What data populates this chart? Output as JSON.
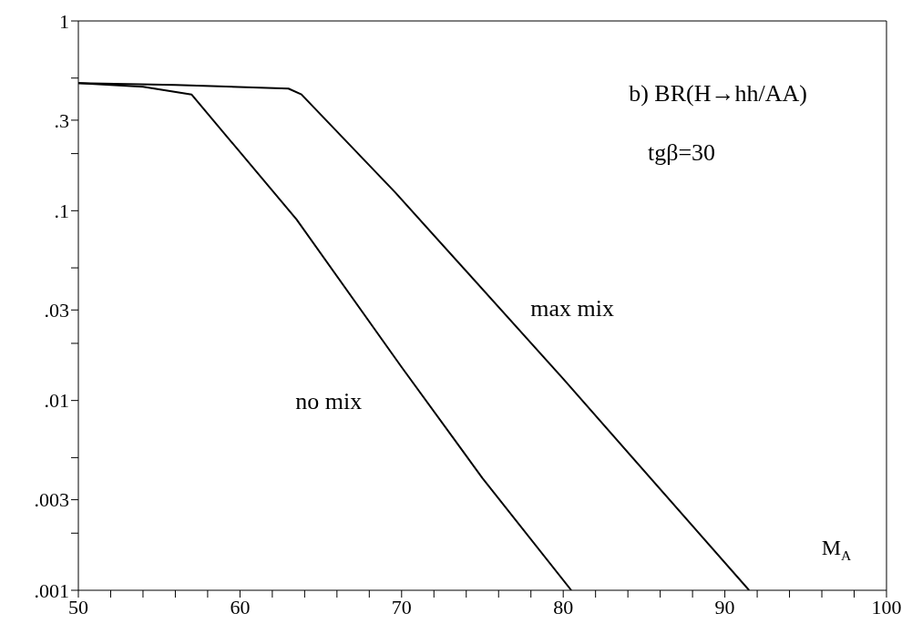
{
  "chart_data": {
    "type": "line",
    "title": "b) BR(H→hh/AA)",
    "subtitle": "tgβ=30",
    "xlabel": "M$_{A}$",
    "log": "y",
    "xlim": [
      50,
      100
    ],
    "xticks": [
      50,
      {
        "value": 52,
        "label": null
      },
      {
        "value": 54,
        "label": null
      },
      {
        "value": 56,
        "label": null
      },
      {
        "value": 58,
        "label": null
      },
      60,
      {
        "value": 62,
        "label": null
      },
      {
        "value": 64,
        "label": null
      },
      {
        "value": 66,
        "label": null
      },
      {
        "value": 68,
        "label": null
      },
      70,
      {
        "value": 72,
        "label": null
      },
      {
        "value": 74,
        "label": null
      },
      {
        "value": 76,
        "label": null
      },
      {
        "value": 78,
        "label": null
      },
      80,
      {
        "value": 82,
        "label": null
      },
      {
        "value": 84,
        "label": null
      },
      {
        "value": 86,
        "label": null
      },
      {
        "value": 88,
        "label": null
      },
      90,
      {
        "value": 92,
        "label": null
      },
      {
        "value": 94,
        "label": null
      },
      {
        "value": 96,
        "label": null
      },
      {
        "value": 98,
        "label": null
      },
      100
    ],
    "ylim": [
      0.001,
      1
    ],
    "yticks": [
      {
        "value": 0.001,
        "label": ".001"
      },
      {
        "value": 0.002,
        "label": null
      },
      {
        "value": 0.003,
        "label": ".003"
      },
      {
        "value": 0.005,
        "label": null
      },
      {
        "value": 0.01,
        "label": ".01"
      },
      {
        "value": 0.02,
        "label": null
      },
      {
        "value": 0.03,
        "label": ".03"
      },
      {
        "value": 0.05,
        "label": null
      },
      {
        "value": 0.1,
        "label": ".1"
      },
      {
        "value": 0.2,
        "label": null
      },
      {
        "value": 0.3,
        "label": ".3"
      },
      {
        "value": 0.5,
        "label": null
      },
      1
    ],
    "series": [
      {
        "name": "no mix",
        "color": "#000000",
        "x": [
          50,
          54,
          57,
          63.5,
          70,
          75,
          80.5
        ],
        "values": [
          0.47,
          0.45,
          0.41,
          0.09,
          0.015,
          0.0039,
          0.001
        ]
      },
      {
        "name": "max mix",
        "color": "#000000",
        "x": [
          50,
          56,
          63,
          63.8,
          69.6,
          80,
          91.5
        ],
        "values": [
          0.47,
          0.46,
          0.44,
          0.41,
          0.125,
          0.013,
          0.001
        ]
      }
    ]
  }
}
